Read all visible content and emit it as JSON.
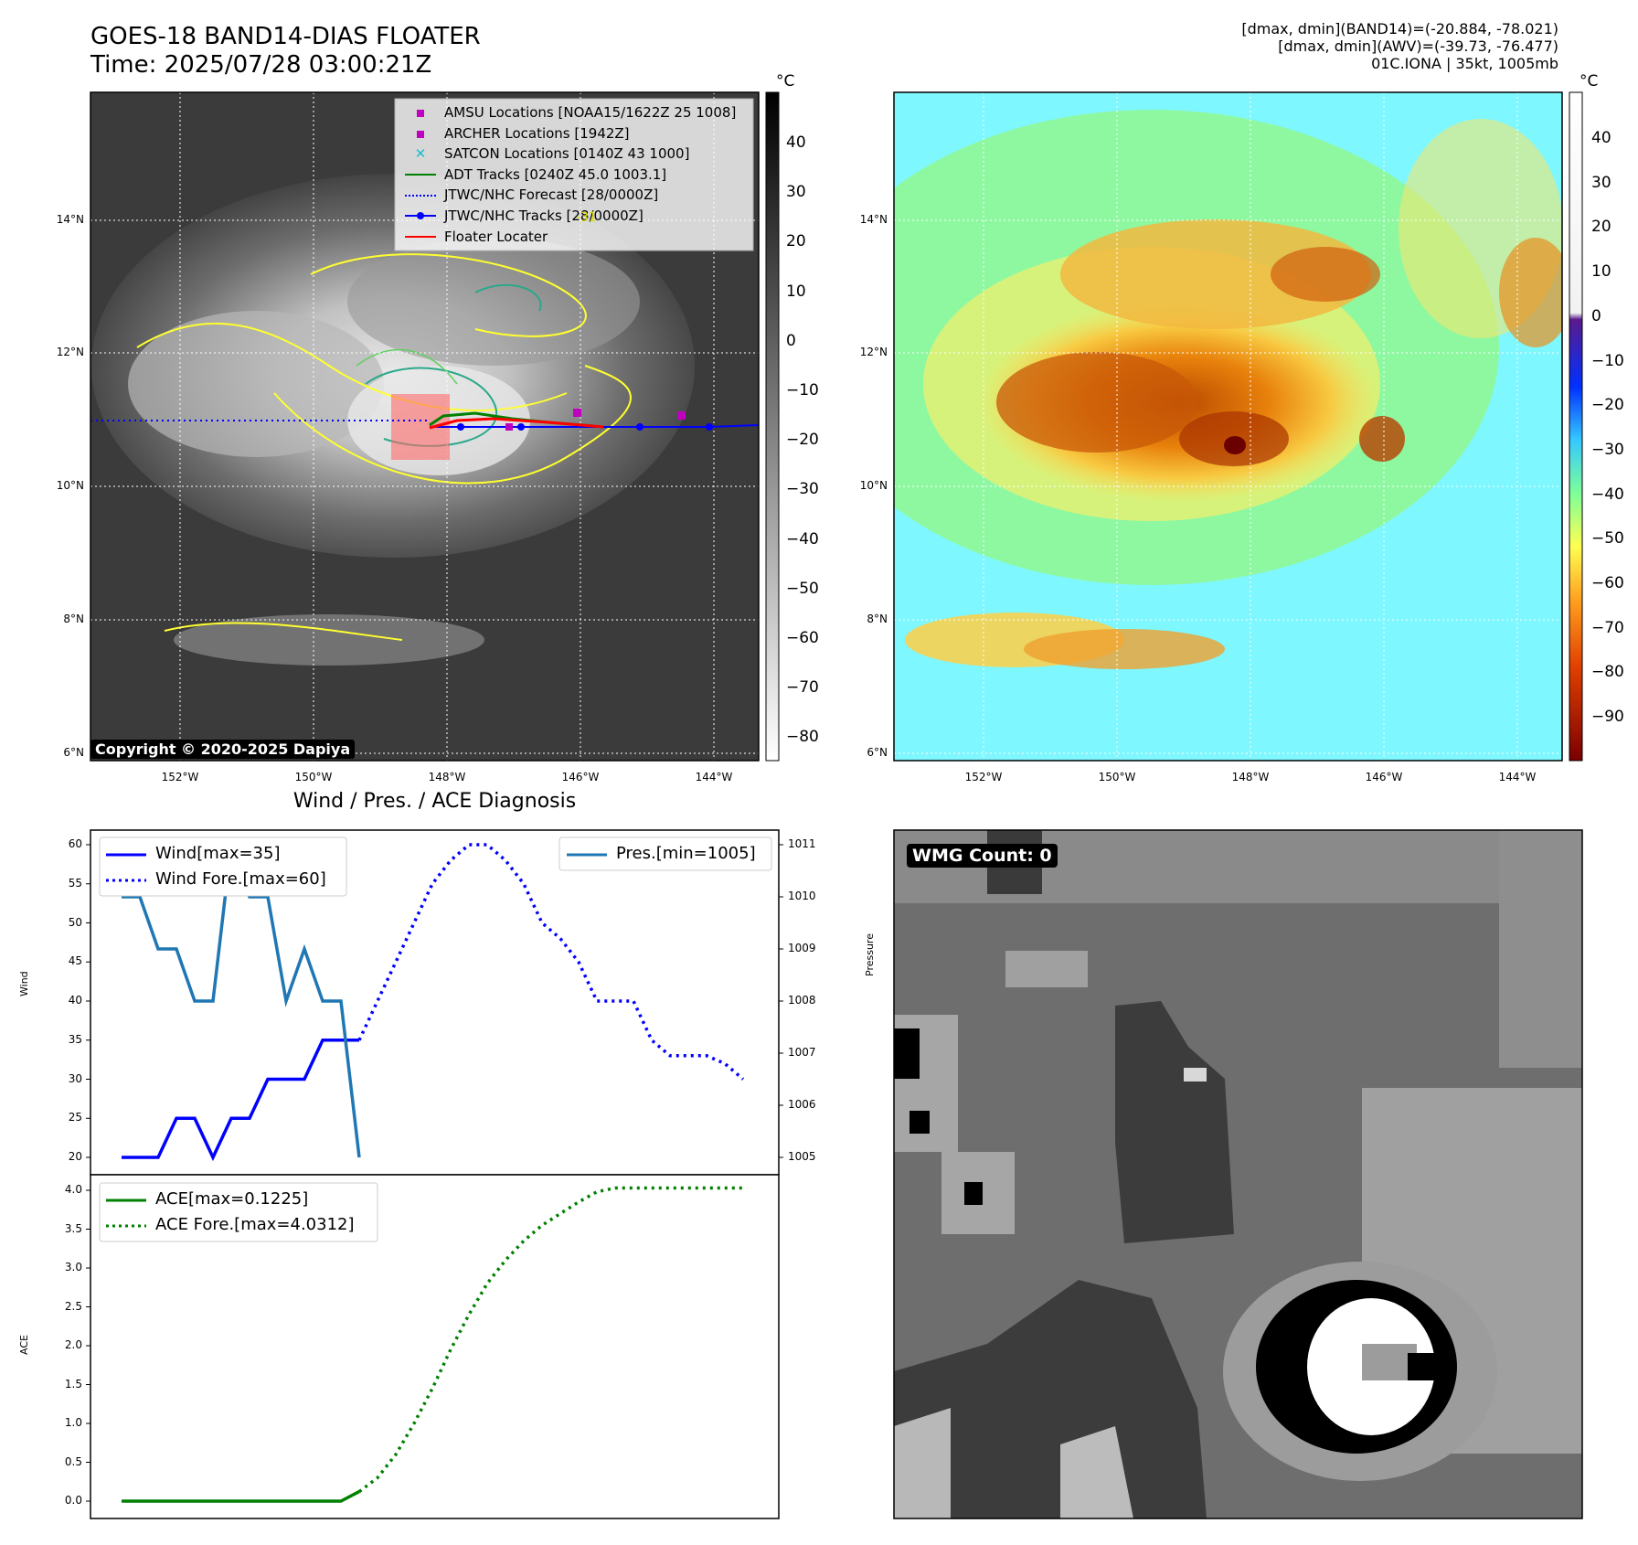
{
  "header": {
    "title_line1": "GOES-18 BAND14-DIAS FLOATER",
    "title_line2": "Time: 2025/07/28 03:00:21Z",
    "info_line1": "[dmax, dmin](BAND14)=(-20.884, -78.021)",
    "info_line2": "[dmax, dmin](AWV)=(-39.73, -76.477)",
    "info_line3": "01C.IONA | 35kt, 1005mb"
  },
  "ir_panel": {
    "lat_ticks": [
      "14°N",
      "12°N",
      "10°N",
      "8°N",
      "6°N"
    ],
    "lon_ticks": [
      "152°W",
      "150°W",
      "148°W",
      "146°W",
      "144°W"
    ],
    "copyright": "Copyright © 2020-2025 Dapiya",
    "contour_label": "-31",
    "colorbar": {
      "unit": "°C",
      "ticks": [
        "40",
        "30",
        "20",
        "10",
        "0",
        "−10",
        "−20",
        "−30",
        "−40",
        "−50",
        "−60",
        "−70",
        "−80"
      ]
    },
    "legend": [
      {
        "label": "AMSU Locations [NOAA15/1622Z 25 1008]",
        "marker": "square",
        "color": "#c000c0"
      },
      {
        "label": "ARCHER Locations [1942Z]",
        "marker": "square",
        "color": "#c000c0"
      },
      {
        "label": "SATCON Locations [0140Z 43 1000]",
        "marker": "x",
        "color": "#17becf"
      },
      {
        "label": "ADT Tracks [0240Z 45.0 1003.1]",
        "marker": "line",
        "color": "#008000"
      },
      {
        "label": "JTWC/NHC Forecast [28/0000Z]",
        "marker": "dotted",
        "color": "#0000ff"
      },
      {
        "label": "JTWC/NHC Tracks [28/0000Z]",
        "marker": "line-dot",
        "color": "#0000ff"
      },
      {
        "label": "Floater Locater",
        "marker": "line",
        "color": "#ff0000"
      }
    ]
  },
  "wv_panel": {
    "lat_ticks": [
      "14°N",
      "12°N",
      "10°N",
      "8°N",
      "6°N"
    ],
    "lon_ticks": [
      "152°W",
      "150°W",
      "148°W",
      "146°W",
      "144°W"
    ],
    "colorbar": {
      "unit": "°C",
      "ticks": [
        "40",
        "30",
        "20",
        "10",
        "0",
        "−10",
        "−20",
        "−30",
        "−40",
        "−50",
        "−60",
        "−70",
        "−80",
        "−90"
      ]
    }
  },
  "wmg_panel": {
    "badge": "WMG Count: 0"
  },
  "diag": {
    "title": "Wind / Pres. / ACE Diagnosis",
    "wind_ylabel": "Wind",
    "pres_ylabel": "Pressure",
    "ace_ylabel": "ACE",
    "wind_ticks": [
      "60",
      "55",
      "50",
      "45",
      "40",
      "35",
      "30",
      "25",
      "20"
    ],
    "pres_ticks": [
      "1011",
      "1010",
      "1009",
      "1008",
      "1007",
      "1006",
      "1005"
    ],
    "ace_ticks": [
      "4.0",
      "3.5",
      "3.0",
      "2.5",
      "2.0",
      "1.5",
      "1.0",
      "0.5",
      "0.0"
    ],
    "legend_wind": "Wind[max=35]",
    "legend_wind_fore": "Wind Fore.[max=60]",
    "legend_pres": "Pres.[min=1005]",
    "legend_ace": "ACE[max=0.1225]",
    "legend_ace_fore": "ACE Fore.[max=4.0312]",
    "colors": {
      "wind": "#0000ff",
      "pres": "#1f77b4",
      "ace": "#008000"
    }
  },
  "chart_data": [
    {
      "type": "line",
      "title": "Wind / Pres. / ACE Diagnosis",
      "ylabel": "Wind",
      "ylim": [
        19,
        61
      ],
      "x": [
        0,
        1,
        2,
        3,
        4,
        5,
        6,
        7,
        8,
        9,
        10,
        11,
        12,
        13,
        14,
        15,
        16,
        17,
        18,
        19,
        20,
        21,
        22,
        23,
        24,
        25,
        26,
        27,
        28,
        29,
        30,
        31,
        32,
        33,
        34
      ],
      "series": [
        {
          "name": "Wind[max=35]",
          "style": "solid",
          "x": [
            0,
            1,
            2,
            3,
            4,
            5,
            6,
            7,
            8,
            9,
            10,
            11,
            12,
            13
          ],
          "values": [
            20,
            20,
            20,
            25,
            25,
            20,
            25,
            25,
            30,
            30,
            30,
            35,
            35,
            35
          ]
        },
        {
          "name": "Wind Fore.[max=60]",
          "style": "dotted",
          "x": [
            13,
            14,
            15,
            16,
            17,
            18,
            19,
            20,
            21,
            22,
            23,
            24,
            25,
            26,
            27,
            28,
            29,
            30,
            31,
            32,
            33,
            34
          ],
          "values": [
            35,
            40,
            45,
            50,
            55,
            58,
            60,
            60,
            58,
            55,
            50,
            48,
            45,
            40,
            40,
            40,
            35,
            33,
            33,
            33,
            32,
            30
          ]
        }
      ]
    },
    {
      "type": "line",
      "ylabel": "Pressure",
      "ylim": [
        1004.8,
        1011.3
      ],
      "series": [
        {
          "name": "Pres.[min=1005]",
          "x": [
            0,
            1,
            2,
            3,
            4,
            5,
            6,
            7,
            8,
            9,
            10,
            11,
            12,
            13
          ],
          "values": [
            1010,
            1010,
            1009,
            1009,
            1008,
            1008,
            1011,
            1010,
            1010,
            1008,
            1009,
            1008,
            1008,
            1005
          ]
        }
      ]
    },
    {
      "type": "line",
      "ylabel": "ACE",
      "ylim": [
        -0.1,
        4.1
      ],
      "series": [
        {
          "name": "ACE[max=0.1225]",
          "style": "solid",
          "x": [
            0,
            1,
            2,
            3,
            4,
            5,
            6,
            7,
            8,
            9,
            10,
            11,
            12,
            13
          ],
          "values": [
            0,
            0,
            0,
            0,
            0,
            0,
            0,
            0,
            0,
            0,
            0,
            0,
            0.0,
            0.1225
          ]
        },
        {
          "name": "ACE Fore.[max=4.0312]",
          "style": "dotted",
          "x": [
            13,
            14,
            15,
            16,
            17,
            18,
            19,
            20,
            21,
            22,
            23,
            24,
            25,
            26,
            27,
            28,
            29,
            30,
            31,
            32,
            33,
            34
          ],
          "values": [
            0.1225,
            0.3,
            0.6,
            1.0,
            1.45,
            1.95,
            2.4,
            2.8,
            3.1,
            3.35,
            3.55,
            3.7,
            3.85,
            3.98,
            4.03,
            4.03,
            4.03,
            4.03,
            4.03,
            4.03,
            4.03,
            4.03
          ]
        }
      ]
    }
  ]
}
